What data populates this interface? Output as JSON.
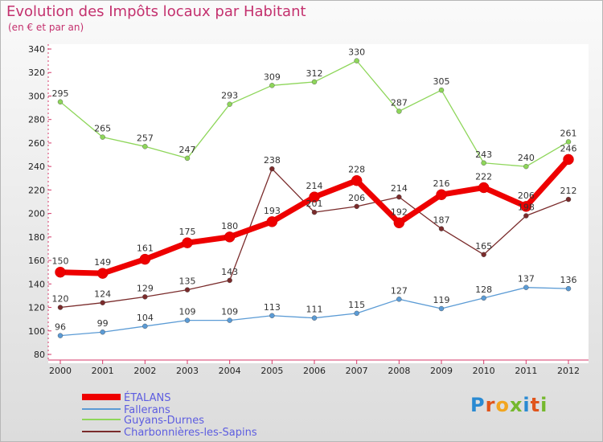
{
  "header": {
    "title": "Evolution des Impôts locaux par Habitant",
    "subtitle": "(en € et par an)"
  },
  "logo": {
    "text": "Proxiti",
    "letters": [
      {
        "ch": "P",
        "color": "#2a8ad2"
      },
      {
        "ch": "r",
        "color": "#e0541b"
      },
      {
        "ch": "o",
        "color": "#f2a51f"
      },
      {
        "ch": "x",
        "color": "#75b82d"
      },
      {
        "ch": "i",
        "color": "#2a8ad2"
      },
      {
        "ch": "t",
        "color": "#e0541b"
      },
      {
        "ch": "i",
        "color": "#75b82d"
      }
    ]
  },
  "chart_data": {
    "type": "line",
    "title": "Evolution des Impôts locaux par Habitant",
    "subtitle": "(en € et par an)",
    "xlabel": "",
    "ylabel": "",
    "x": [
      "2000",
      "2001",
      "2002",
      "2003",
      "2004",
      "2005",
      "2006",
      "2007",
      "2008",
      "2009",
      "2010",
      "2011",
      "2012"
    ],
    "ylim": [
      80,
      340
    ],
    "yticks": [
      80,
      100,
      120,
      140,
      160,
      180,
      200,
      220,
      240,
      260,
      280,
      300,
      320,
      340
    ],
    "grid": false,
    "legend_position": "bottom-left",
    "series": [
      {
        "name": "ÉTALANS",
        "color": "#ee0000",
        "width": 7,
        "values": [
          150,
          149,
          161,
          175,
          180,
          193,
          214,
          228,
          192,
          216,
          222,
          206,
          246
        ]
      },
      {
        "name": "Fallerans",
        "color": "#5b9bd5",
        "width": 1.3,
        "values": [
          96,
          99,
          104,
          109,
          109,
          113,
          111,
          115,
          127,
          119,
          128,
          137,
          136
        ]
      },
      {
        "name": "Guyans-Durnes",
        "color": "#8ed65a",
        "width": 1.3,
        "values": [
          295,
          265,
          257,
          247,
          293,
          309,
          312,
          330,
          287,
          305,
          243,
          240,
          261
        ]
      },
      {
        "name": "Charbonnières-les-Sapins",
        "color": "#7a2b2b",
        "width": 1.3,
        "values": [
          120,
          124,
          129,
          135,
          143,
          238,
          201,
          206,
          214,
          187,
          165,
          198,
          212
        ]
      }
    ]
  }
}
